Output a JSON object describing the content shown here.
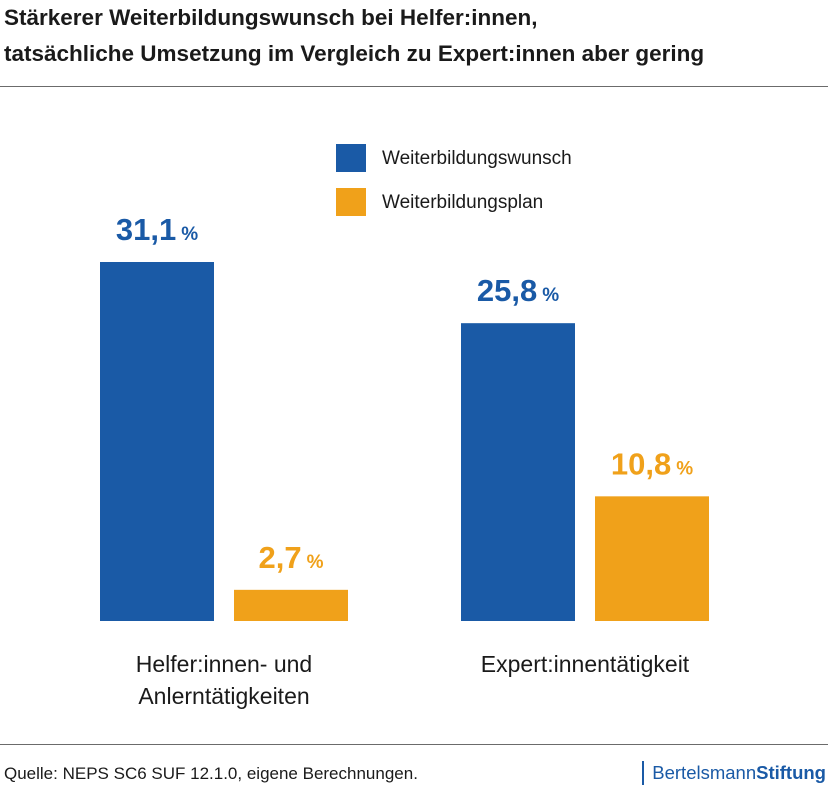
{
  "title": {
    "line1": "Stärkerer Weiterbildungswunsch bei Helfer:innen,",
    "line2": "tatsächliche Umsetzung im Vergleich zu Expert:innen aber gering"
  },
  "source": "Quelle: NEPS SC6 SUF 12.1.0, eigene Berechnungen.",
  "brand": {
    "part1": "Bertelsmann",
    "part2": "Stiftung"
  },
  "colors": {
    "series1": "#1a5aa6",
    "series2": "#f0a11a"
  },
  "chart_data": {
    "type": "bar",
    "title": "Stärkerer Weiterbildungswunsch bei Helfer:innen, tatsächliche Umsetzung im Vergleich zu Expert:innen aber gering",
    "categories": [
      [
        "Helfer:innen- und",
        "Anlerntätigkeiten"
      ],
      [
        "Expert:innentätigkeit"
      ]
    ],
    "series": [
      {
        "name": "Weiterbildungswunsch",
        "values": [
          31.1,
          25.8
        ],
        "labels": [
          "31,1",
          "25,8"
        ]
      },
      {
        "name": "Weiterbildungsplan",
        "values": [
          2.7,
          10.8
        ],
        "labels": [
          "2,7",
          "10,8"
        ]
      }
    ],
    "unit": "%",
    "xlabel": "",
    "ylabel": "",
    "ylim": [
      0,
      31.1
    ],
    "grid": false,
    "legend": "top-right"
  }
}
